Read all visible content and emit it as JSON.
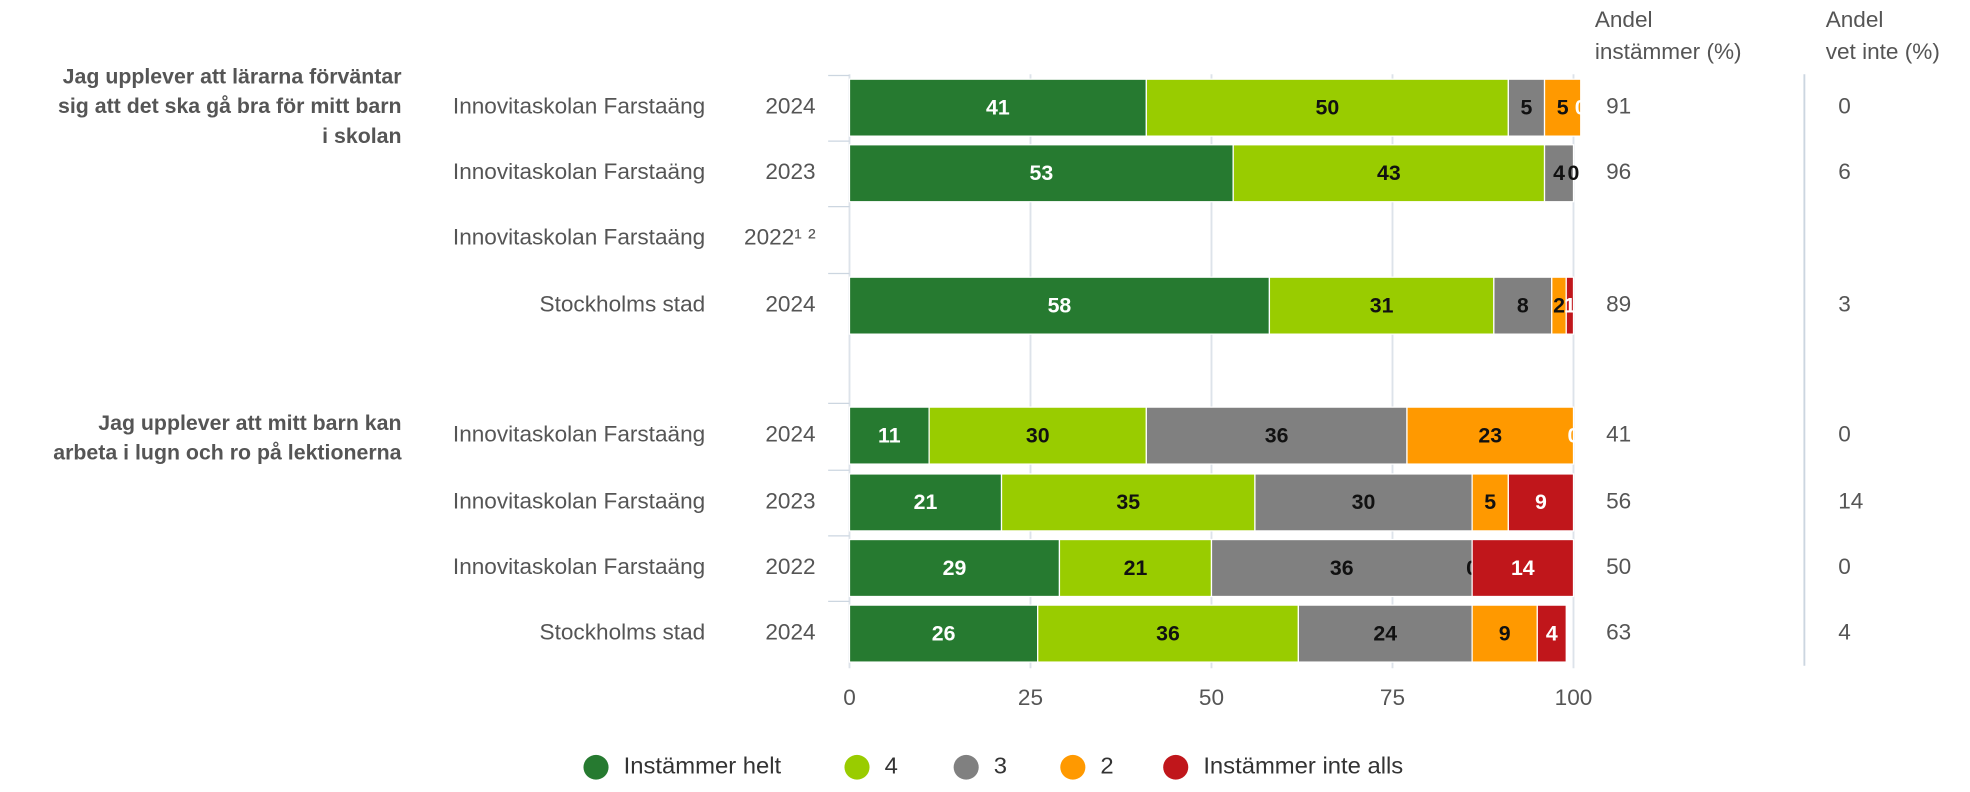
{
  "chart_data": {
    "type": "bar",
    "orientation": "horizontal",
    "stacked": true,
    "groups": [
      {
        "label": [
          "Jag upplever att lärarna förväntar",
          "sig att det ska gå bra för mitt barn",
          "i skolan"
        ],
        "rows": [
          0,
          1,
          2,
          3
        ]
      },
      {
        "label": [
          "Jag upplever att mitt barn kan",
          "arbeta i lugn och ro på lektionerna"
        ],
        "rows": [
          4,
          5,
          6,
          7
        ]
      }
    ],
    "categories": [
      "Innovitaskolan Farstaäng",
      "Innovitaskolan Farstaäng",
      "Innovitaskolan Farstaäng",
      "Stockholms stad",
      "Innovitaskolan Farstaäng",
      "Innovitaskolan Farstaäng",
      "Innovitaskolan Farstaäng",
      "Stockholms stad"
    ],
    "years": [
      "2024",
      "2023",
      "2022¹ ²",
      "2024",
      "2024",
      "2023",
      "2022",
      "2024"
    ],
    "series": [
      {
        "name": "Instämmer helt",
        "color": "#267a30",
        "label_color": "#ffffff",
        "values": [
          41,
          53,
          null,
          58,
          11,
          21,
          29,
          26
        ]
      },
      {
        "name": "4",
        "color": "#99cc00",
        "label_color": "#111111",
        "values": [
          50,
          43,
          null,
          31,
          30,
          35,
          21,
          36
        ]
      },
      {
        "name": "3",
        "color": "#808080",
        "label_color": "#111111",
        "values": [
          5,
          4,
          null,
          8,
          36,
          30,
          36,
          24
        ]
      },
      {
        "name": "2",
        "color": "#ff9900",
        "label_color": "#111111",
        "values": [
          5,
          0,
          null,
          2,
          23,
          5,
          0,
          9
        ]
      },
      {
        "name": "Instämmer inte alls",
        "color": "#c0161b",
        "label_color": "#ffffff",
        "values": [
          0,
          null,
          null,
          1,
          0,
          9,
          14,
          4
        ]
      }
    ],
    "columns": [
      {
        "header": [
          "Andel",
          "instämmer (%)"
        ],
        "values": [
          91,
          96,
          null,
          89,
          41,
          56,
          50,
          63
        ]
      },
      {
        "header": [
          "Andel",
          "vet inte (%)"
        ],
        "values": [
          0,
          6,
          null,
          3,
          0,
          14,
          0,
          4
        ]
      }
    ],
    "xlim": [
      0,
      100
    ],
    "xticks": [
      0,
      25,
      50,
      75,
      100
    ],
    "grid": true,
    "legend": "bottom"
  }
}
